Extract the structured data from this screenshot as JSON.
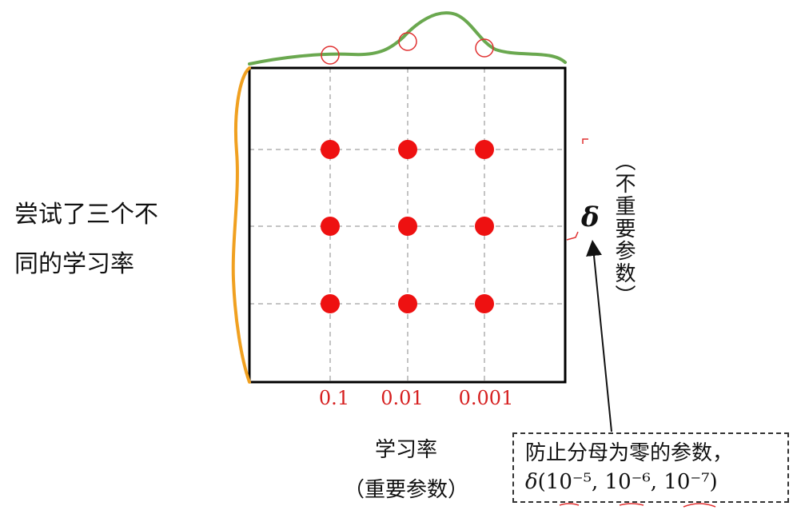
{
  "left_note": {
    "line1": "尝试了三个不",
    "line2": "同的学习率"
  },
  "x_tick_labels": [
    "0.1",
    "0.01",
    "0.001"
  ],
  "x_axis": {
    "title": "学习率",
    "subtitle": "（重要参数）"
  },
  "y_axis": {
    "symbol": "δ",
    "note": "（不重要参数）"
  },
  "note_box": {
    "line1": "防止分母为零的参数，",
    "delta_symbol": "δ",
    "values_text": "(10⁻⁵, 10⁻⁶, 10⁻⁷)"
  },
  "colors": {
    "grid_points": "#ee1111",
    "tick_labels": "#d62020",
    "top_distribution": "#6aa84f",
    "left_distribution": "#f0a020",
    "highlight_circles": "#e03030",
    "frame": "#000000",
    "grid_lines": "#888888"
  },
  "grid": {
    "columns": 3,
    "rows": 3
  }
}
